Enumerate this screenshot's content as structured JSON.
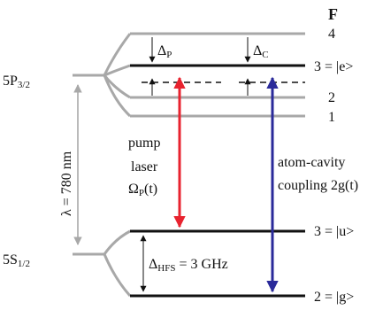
{
  "header": {
    "label": "F"
  },
  "states": {
    "p32": {
      "main": "5P",
      "sub": "3/2"
    },
    "s12": {
      "main": "5S",
      "sub": "1/2"
    },
    "f4": "4",
    "e": "3 = |e>",
    "f2": "2",
    "f1": "1",
    "u": "3 = |u>",
    "g": "2 = |g>"
  },
  "detunings": {
    "pump": {
      "main": "Δ",
      "sub": "P"
    },
    "cavity": {
      "main": "Δ",
      "sub": "C"
    },
    "hfs": {
      "main": "Δ",
      "sub": "HFS",
      "tail": " = 3 GHz"
    }
  },
  "wavelength": "λ = 780 nm",
  "pump_label": {
    "line1": "pump",
    "line2": "laser",
    "omega": "Ω",
    "omega_sub": "P",
    "omega_tail": "(t)"
  },
  "coupling_label": {
    "line1": "atom-cavity",
    "line2": "coupling 2g(t)"
  },
  "colors": {
    "pump_arrow": "#e8232f",
    "coupling_arrow": "#2a2a9a",
    "level_gray": "#a8a8a8",
    "level_black": "#111111"
  }
}
